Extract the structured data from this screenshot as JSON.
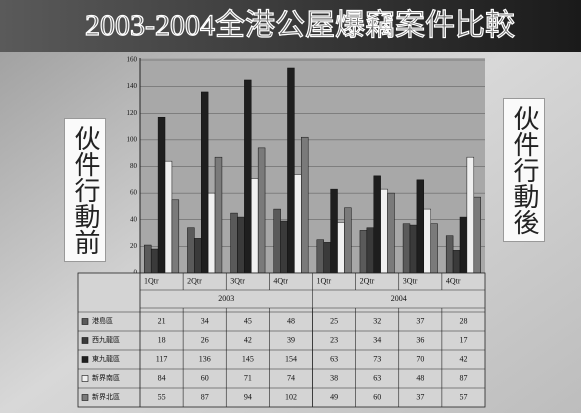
{
  "chart_data": {
    "type": "bar",
    "title": "2003-2004全港公屋爆竊案件比較",
    "annotations": [
      "伙件行動前",
      "伙件行動後"
    ],
    "categories": [
      "1Qtr",
      "2Qtr",
      "3Qtr",
      "4Qtr",
      "1Qtr",
      "2Qtr",
      "3Qtr",
      "4Qtr"
    ],
    "year_groups": [
      "2003",
      "2004"
    ],
    "series": [
      {
        "name": "港島區",
        "color": "#5a5a5a",
        "values": [
          21,
          34,
          45,
          48,
          25,
          32,
          37,
          28
        ]
      },
      {
        "name": "西九龍區",
        "color": "#3a3a3a",
        "values": [
          18,
          26,
          42,
          39,
          23,
          34,
          36,
          17
        ]
      },
      {
        "name": "東九龍區",
        "color": "#1e1e1e",
        "values": [
          117,
          136,
          145,
          154,
          63,
          73,
          70,
          42
        ]
      },
      {
        "name": "新界南區",
        "color": "#f0f0f0",
        "values": [
          84,
          60,
          71,
          74,
          38,
          63,
          48,
          87
        ]
      },
      {
        "name": "新界北區",
        "color": "#7a7a7a",
        "values": [
          55,
          87,
          94,
          102,
          49,
          60,
          37,
          57
        ]
      }
    ],
    "ylim": [
      0,
      160
    ],
    "yticks": [
      0,
      20,
      40,
      60,
      80,
      100,
      120,
      140,
      160
    ],
    "grid": true
  }
}
